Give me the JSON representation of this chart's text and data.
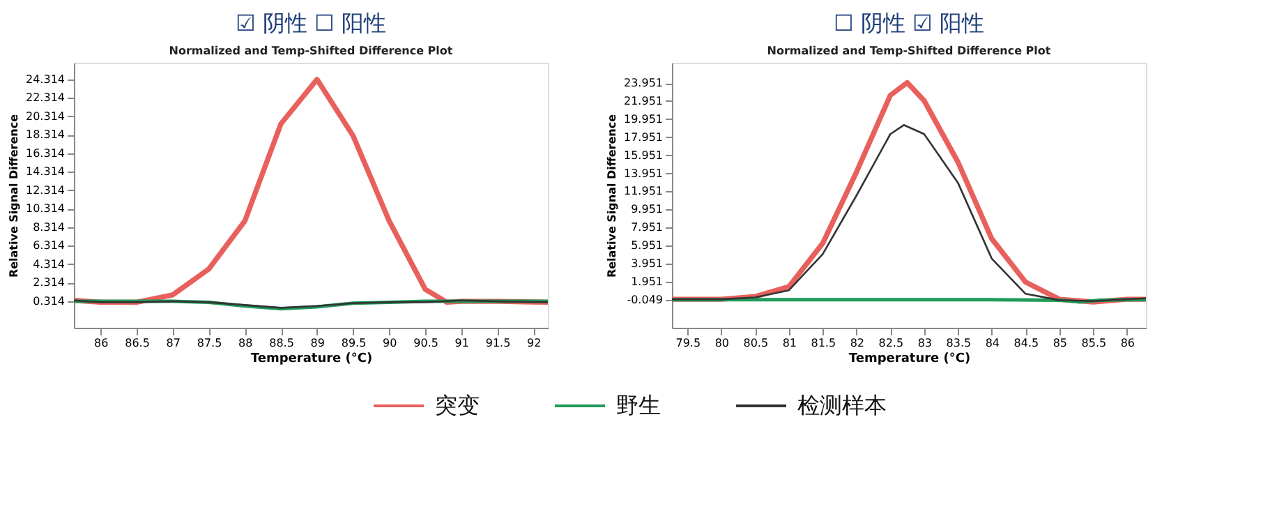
{
  "chart_data": [
    {
      "type": "line",
      "title": "☑ 阴性  ☐ 阳性",
      "subtitle": "Normalized and Temp-Shifted Difference Plot",
      "xlabel": "Temperature (°C)",
      "ylabel": "Relative Signal Difference",
      "xlim": [
        85.63,
        92.2
      ],
      "xticks": [
        86,
        86.5,
        87,
        87.5,
        88,
        88.5,
        89,
        89.5,
        90,
        90.5,
        91,
        91.5,
        92
      ],
      "ylim": [
        -2.56,
        26.1
      ],
      "yticks": [
        0.314,
        2.314,
        4.314,
        6.314,
        8.314,
        10.314,
        12.314,
        14.314,
        16.314,
        18.314,
        20.314,
        22.314,
        24.314
      ],
      "grid": false,
      "legend": "bottom",
      "series": [
        {
          "name": "突变",
          "color": "#e8605c",
          "x": [
            85.63,
            86,
            86.5,
            87,
            87.5,
            88,
            88.5,
            89,
            89.5,
            90,
            90.5,
            90.8,
            91,
            91.5,
            92.2
          ],
          "values": [
            0.4,
            0.2,
            0.2,
            1.0,
            3.8,
            9.0,
            19.5,
            24.3,
            18.2,
            9.0,
            1.6,
            0.2,
            0.3,
            0.3,
            0.2
          ]
        },
        {
          "name": "野生",
          "color": "#1f9a5a",
          "x": [
            85.63,
            86.5,
            87,
            87.5,
            88,
            88.5,
            89,
            89.5,
            90,
            90.5,
            91,
            91.5,
            92.2
          ],
          "values": [
            0.3,
            0.3,
            0.3,
            0.2,
            -0.2,
            -0.5,
            -0.3,
            0.1,
            0.2,
            0.3,
            0.3,
            0.3,
            0.3
          ]
        },
        {
          "name": "检测样本",
          "color": "#333333",
          "x": [
            85.63,
            86,
            86.5,
            87,
            87.5,
            88,
            88.5,
            89,
            89.5,
            90,
            90.5,
            91,
            91.5,
            92.2
          ],
          "values": [
            0.4,
            0.2,
            0.2,
            0.3,
            0.2,
            -0.1,
            -0.4,
            -0.2,
            0.1,
            0.2,
            0.2,
            0.4,
            0.3,
            0.2
          ]
        }
      ]
    },
    {
      "type": "line",
      "title": "☐ 阴性  ☑ 阳性",
      "subtitle": "Normalized and Temp-Shifted Difference Plot",
      "xlabel": "Temperature (°C)",
      "ylabel": "Relative Signal Difference",
      "xlim": [
        79.27,
        86.28
      ],
      "xticks": [
        79.5,
        80,
        80.5,
        81,
        81.5,
        82,
        82.5,
        83,
        83.5,
        84,
        84.5,
        85,
        85.5,
        86
      ],
      "ylim": [
        -3.16,
        26.2
      ],
      "yticks": [
        -0.049,
        1.951,
        3.951,
        5.951,
        7.951,
        9.951,
        11.951,
        13.951,
        15.951,
        17.951,
        19.951,
        21.951,
        23.951
      ],
      "grid": false,
      "legend": "bottom",
      "series": [
        {
          "name": "突变",
          "color": "#e8605c",
          "x": [
            79.27,
            80,
            80.5,
            81,
            81.5,
            82,
            82.5,
            82.75,
            83,
            83.5,
            84,
            84.5,
            85,
            85.5,
            86,
            86.28
          ],
          "values": [
            0,
            0,
            0.3,
            1.4,
            6.2,
            14.1,
            22.6,
            24.0,
            22.0,
            15.2,
            6.7,
            1.9,
            0,
            -0.3,
            0,
            0
          ]
        },
        {
          "name": "野生",
          "color": "#1f9a5a",
          "x": [
            79.27,
            80,
            81,
            82,
            83,
            84,
            85,
            85.3,
            85.6,
            86,
            86.28
          ],
          "values": [
            -0.049,
            -0.049,
            -0.049,
            -0.049,
            -0.049,
            -0.049,
            -0.1,
            -0.3,
            -0.1,
            -0.049,
            -0.049
          ]
        },
        {
          "name": "检测样本",
          "color": "#333333",
          "x": [
            79.27,
            80,
            80.5,
            81,
            81.5,
            82,
            82.5,
            82.7,
            83,
            83.5,
            84,
            84.5,
            85,
            85.5,
            86.28
          ],
          "values": [
            0,
            0,
            0.2,
            1.0,
            5.0,
            11.5,
            18.3,
            19.3,
            18.3,
            12.9,
            4.5,
            0.6,
            -0.1,
            -0.2,
            0.1
          ]
        }
      ]
    }
  ]
}
